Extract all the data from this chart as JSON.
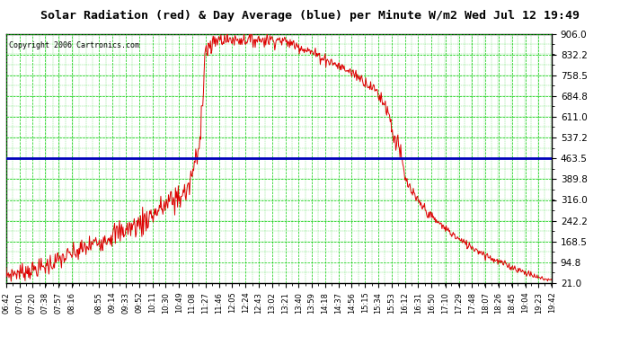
{
  "title": "Solar Radiation (red) & Day Average (blue) per Minute W/m2 Wed Jul 12 19:49",
  "copyright": "Copyright 2006 Cartronics.com",
  "background_color": "#ffffff",
  "plot_bg_color": "#ffffff",
  "grid_color": "#00cc00",
  "line_color_red": "#dd0000",
  "line_color_blue": "#0000bb",
  "day_average": 463.5,
  "ymin": 21.0,
  "ymax": 906.0,
  "yticks": [
    21.0,
    94.8,
    168.5,
    242.2,
    316.0,
    389.8,
    463.5,
    537.2,
    611.0,
    684.8,
    758.5,
    832.2,
    906.0
  ],
  "xtick_labels": [
    "06:42",
    "07:01",
    "07:20",
    "07:38",
    "07:57",
    "08:16",
    "08:55",
    "09:14",
    "09:33",
    "09:52",
    "10:11",
    "10:30",
    "10:49",
    "11:08",
    "11:27",
    "11:46",
    "12:05",
    "12:24",
    "12:43",
    "13:02",
    "13:21",
    "13:40",
    "13:59",
    "14:18",
    "14:37",
    "14:56",
    "15:15",
    "15:34",
    "15:53",
    "16:12",
    "16:31",
    "16:50",
    "17:10",
    "17:29",
    "17:48",
    "18:07",
    "18:26",
    "18:45",
    "19:04",
    "19:23",
    "19:42"
  ]
}
